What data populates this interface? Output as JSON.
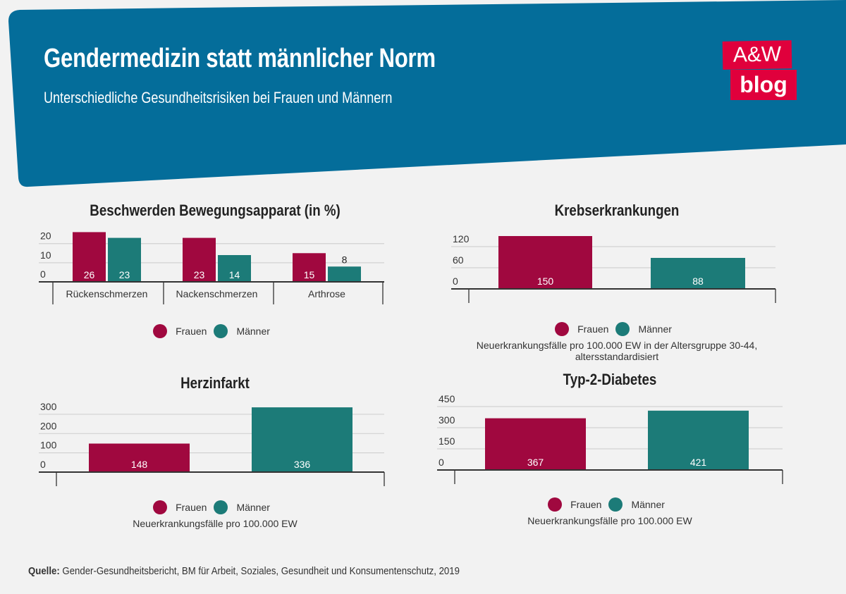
{
  "header": {
    "title": "Gendermedizin statt männlicher Norm",
    "subtitle": "Unterschiedliche Gesundheitsrisiken bei Frauen und Männern",
    "logo_line1": "A&W",
    "logo_line2": "blog",
    "bg_color": "#046d9a",
    "logo_color": "#e0003c"
  },
  "colors": {
    "frauen": "#a0083f",
    "maenner": "#1c7b78"
  },
  "legend": {
    "frauen": "Frauen",
    "maenner": "Männer"
  },
  "source": {
    "label": "Quelle:",
    "text": " Gender-Gesundheitsbericht, BM für Arbeit, Soziales, Gesundheit und Konsumentenschutz, 2019"
  },
  "chart_data": [
    {
      "type": "bar",
      "id": "bewegung",
      "title": "Beschwerden Bewegungsapparat (in %)",
      "categories": [
        "Rückenschmerzen",
        "Nackenschmerzen",
        "Arthrose"
      ],
      "series": [
        {
          "name": "Frauen",
          "values": [
            26,
            23,
            15
          ]
        },
        {
          "name": "Männer",
          "values": [
            23,
            14,
            8
          ]
        }
      ],
      "yticks": [
        0,
        10,
        20
      ],
      "ylim": [
        0,
        28
      ],
      "legend": [
        "Frauen",
        "Männer"
      ],
      "note": ""
    },
    {
      "type": "bar",
      "id": "krebs",
      "title": "Krebserkrankungen",
      "categories": [
        "Frauen",
        "Männer"
      ],
      "values": [
        150,
        88
      ],
      "yticks": [
        0,
        60,
        120
      ],
      "ylim": [
        0,
        160
      ],
      "legend": [
        "Frauen",
        "Männer"
      ],
      "note": "Neuerkrankungsfälle pro 100.000 EW in der Altersgruppe 30-44, altersstandardisiert"
    },
    {
      "type": "bar",
      "id": "herz",
      "title": "Herzinfarkt",
      "categories": [
        "Frauen",
        "Männer"
      ],
      "values": [
        148,
        336
      ],
      "yticks": [
        0,
        100,
        200,
        300
      ],
      "ylim": [
        0,
        340
      ],
      "legend": [
        "Frauen",
        "Männer"
      ],
      "note": "Neuerkrankungsfälle pro 100.000 EW"
    },
    {
      "type": "bar",
      "id": "diabetes",
      "title": "Typ-2-Diabetes",
      "categories": [
        "Frauen",
        "Männer"
      ],
      "values": [
        367,
        421
      ],
      "yticks": [
        0,
        150,
        300,
        450
      ],
      "ylim": [
        0,
        450
      ],
      "legend": [
        "Frauen",
        "Männer"
      ],
      "note": "Neuerkrankungsfälle pro 100.000 EW"
    }
  ]
}
